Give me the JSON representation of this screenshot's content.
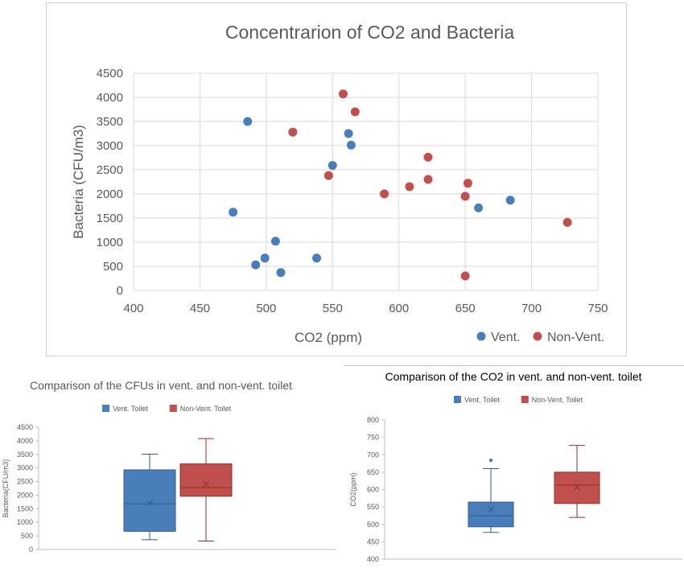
{
  "chart_data": [
    {
      "type": "scatter",
      "title": "Concentrarion of CO2 and Bacteria",
      "xlabel": "CO2 (ppm)",
      "ylabel": "Bacteria (CFU/m3)",
      "xlim": [
        400,
        750
      ],
      "ylim": [
        0,
        4500
      ],
      "xticks": [
        "400",
        "450",
        "500",
        "550",
        "600",
        "650",
        "700",
        "750"
      ],
      "yticks": [
        "0",
        "500",
        "1000",
        "1500",
        "2000",
        "2500",
        "3000",
        "3500",
        "4000",
        "4500"
      ],
      "grid": true,
      "legend_position": "bottom-right",
      "series": [
        {
          "name": "Vent.",
          "color": "#4a7ebb",
          "points": [
            [
              486,
              3500
            ],
            [
              475,
              1620
            ],
            [
              507,
              1020
            ],
            [
              499,
              670
            ],
            [
              492,
              530
            ],
            [
              511,
              370
            ],
            [
              538,
              670
            ],
            [
              550,
              2590
            ],
            [
              562,
              3250
            ],
            [
              564,
              3010
            ],
            [
              660,
              1710
            ],
            [
              684,
              1870
            ]
          ]
        },
        {
          "name": "Non-Vent.",
          "color": "#c0504d",
          "points": [
            [
              558,
              4070
            ],
            [
              567,
              3700
            ],
            [
              520,
              3280
            ],
            [
              547,
              2380
            ],
            [
              589,
              2000
            ],
            [
              608,
              2150
            ],
            [
              622,
              2760
            ],
            [
              622,
              2300
            ],
            [
              652,
              2220
            ],
            [
              650,
              1950
            ],
            [
              650,
              300
            ],
            [
              727,
              1410
            ]
          ]
        }
      ]
    },
    {
      "type": "box",
      "title": "Comparison of the CFUs in vent. and non-vent. toilet",
      "ylabel": "Bacteria(CFU/m3)",
      "ylim": [
        0,
        4500
      ],
      "yticks": [
        "0",
        "500",
        "1000",
        "1500",
        "2000",
        "2500",
        "3000",
        "3500",
        "4000",
        "4500"
      ],
      "legend_position": "top",
      "series": [
        {
          "name": "Vent. Toilet",
          "color": "#4a7ebb",
          "min": 360,
          "q1": 670,
          "median": 1680,
          "q3": 2930,
          "max": 3510,
          "mean": 1700
        },
        {
          "name": "Non-Vent. Toilet",
          "color": "#c0504d",
          "min": 310,
          "q1": 1960,
          "median": 2280,
          "q3": 3150,
          "max": 4080,
          "mean": 2400
        }
      ]
    },
    {
      "type": "box",
      "title": "Comparison of the CO2 in vent. and non-vent. toilet",
      "ylabel": "CO2(ppm)",
      "ylim": [
        400,
        800
      ],
      "yticks": [
        "400",
        "450",
        "500",
        "550",
        "600",
        "650",
        "700",
        "750",
        "800"
      ],
      "legend_position": "top",
      "series": [
        {
          "name": "Vent. Toilet",
          "color": "#4a7ebb",
          "min": 477,
          "q1": 493,
          "median": 525,
          "q3": 564,
          "max": 660,
          "mean": 543,
          "outliers": [
            684
          ]
        },
        {
          "name": "Non-Vent. Toilet",
          "color": "#c0504d",
          "min": 520,
          "q1": 560,
          "median": 613,
          "q3": 650,
          "max": 727,
          "mean": 607
        }
      ]
    }
  ]
}
